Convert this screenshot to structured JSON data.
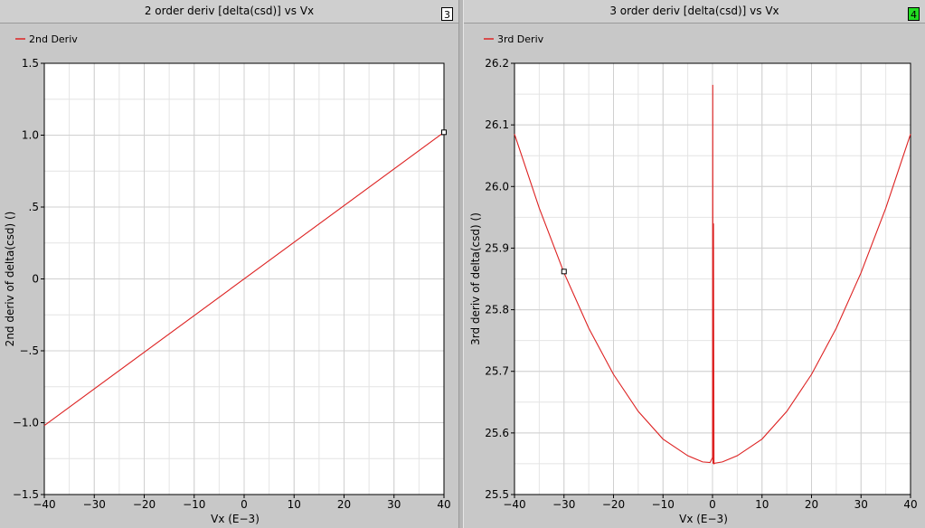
{
  "panels": [
    {
      "title": "2 order deriv [delta(csd)] vs Vx",
      "badge": "3",
      "badge_color": "#ffffff"
    },
    {
      "title": "3 order deriv [delta(csd)] vs Vx",
      "badge": "4",
      "badge_color": "#22dd22"
    }
  ],
  "chart_data": [
    {
      "type": "line",
      "title": "2 order deriv [delta(csd)] vs Vx",
      "xlabel": "Vx (E-3)",
      "ylabel": "2nd deriv of delta(csd) ()",
      "xlim": [
        -40,
        40
      ],
      "ylim": [
        -1.5,
        1.5
      ],
      "xticks": [
        -40,
        -30,
        -20,
        -10,
        0,
        10,
        20,
        30,
        40
      ],
      "yticks": [
        -1.5,
        -1.0,
        -0.5,
        0,
        0.5,
        1.0,
        1.5
      ],
      "ytick_labels": [
        "-1.5",
        "-1.0",
        "-.5",
        "0",
        ".5",
        "1.0",
        "1.5"
      ],
      "grid": true,
      "legend_position": "top-left",
      "series": [
        {
          "name": "2nd Deriv",
          "color": "#dd2222",
          "x": [
            -40,
            40
          ],
          "y": [
            -1.02,
            1.02
          ]
        }
      ],
      "marker": {
        "x": 40,
        "y": 1.02
      }
    },
    {
      "type": "line",
      "title": "3 order deriv [delta(csd)] vs Vx",
      "xlabel": "Vx (E-3)",
      "ylabel": "3rd deriv of delta(csd) ()",
      "xlim": [
        -40,
        40
      ],
      "ylim": [
        25.5,
        26.2
      ],
      "xticks": [
        -40,
        -30,
        -20,
        -10,
        0,
        10,
        20,
        30,
        40
      ],
      "yticks": [
        25.5,
        25.6,
        25.7,
        25.8,
        25.9,
        26.0,
        26.1,
        26.2
      ],
      "ytick_labels": [
        "25.5",
        "25.6",
        "25.7",
        "25.8",
        "25.9",
        "26.0",
        "26.1",
        "26.2"
      ],
      "grid": true,
      "legend_position": "top-left",
      "series": [
        {
          "name": "3rd Deriv",
          "color": "#dd2222",
          "x": [
            -40,
            -35,
            -30,
            -25,
            -20,
            -15,
            -10,
            -5,
            -2,
            -0.5,
            0,
            0.05,
            0.1,
            0.2,
            0.3,
            0.5,
            2,
            5,
            10,
            15,
            20,
            25,
            30,
            35,
            40
          ],
          "y": [
            26.085,
            25.965,
            25.86,
            25.77,
            25.695,
            25.635,
            25.59,
            25.563,
            25.553,
            25.552,
            25.56,
            26.165,
            25.55,
            25.94,
            25.55,
            25.551,
            25.553,
            25.563,
            25.59,
            25.635,
            25.695,
            25.77,
            25.86,
            25.965,
            26.085
          ]
        }
      ],
      "marker": {
        "x": -30,
        "y": 25.862
      }
    }
  ]
}
